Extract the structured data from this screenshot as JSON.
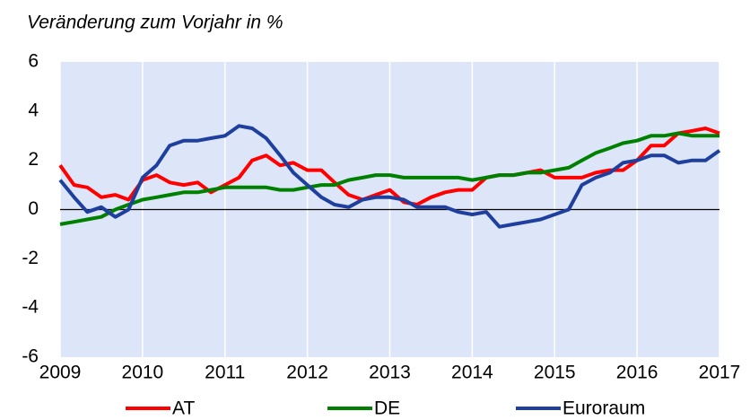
{
  "chart_data": {
    "type": "line",
    "title": "Veränderung zum Vorjahr in %",
    "x": [
      2009,
      2009.17,
      2009.33,
      2009.5,
      2009.67,
      2009.83,
      2010,
      2010.17,
      2010.33,
      2010.5,
      2010.67,
      2010.83,
      2011,
      2011.17,
      2011.33,
      2011.5,
      2011.67,
      2011.83,
      2012,
      2012.17,
      2012.33,
      2012.5,
      2012.67,
      2012.83,
      2013,
      2013.17,
      2013.33,
      2013.5,
      2013.67,
      2013.83,
      2014,
      2014.17,
      2014.33,
      2014.5,
      2014.67,
      2014.83,
      2015,
      2015.17,
      2015.33,
      2015.5,
      2015.67,
      2015.83,
      2016,
      2016.17,
      2016.33,
      2016.5,
      2016.67,
      2016.83,
      2017
    ],
    "series": [
      {
        "name": "AT",
        "color": "#ff0000",
        "values": [
          1.8,
          1.0,
          0.9,
          0.5,
          0.6,
          0.4,
          1.2,
          1.4,
          1.1,
          1.0,
          1.1,
          0.7,
          1.0,
          1.3,
          2.0,
          2.2,
          1.8,
          1.9,
          1.6,
          1.6,
          1.1,
          0.6,
          0.4,
          0.6,
          0.8,
          0.3,
          0.2,
          0.5,
          0.7,
          0.8,
          0.8,
          1.3,
          1.4,
          1.4,
          1.5,
          1.6,
          1.3,
          1.3,
          1.3,
          1.5,
          1.6,
          1.6,
          2.0,
          2.6,
          2.6,
          3.1,
          3.2,
          3.3,
          3.1
        ]
      },
      {
        "name": "DE",
        "color": "#008000",
        "values": [
          -0.6,
          -0.5,
          -0.4,
          -0.3,
          0.0,
          0.2,
          0.4,
          0.5,
          0.6,
          0.7,
          0.7,
          0.8,
          0.9,
          0.9,
          0.9,
          0.9,
          0.8,
          0.8,
          0.9,
          1.0,
          1.0,
          1.2,
          1.3,
          1.4,
          1.4,
          1.3,
          1.3,
          1.3,
          1.3,
          1.3,
          1.2,
          1.3,
          1.4,
          1.4,
          1.5,
          1.5,
          1.6,
          1.7,
          2.0,
          2.3,
          2.5,
          2.7,
          2.8,
          3.0,
          3.0,
          3.1,
          3.0,
          3.0,
          3.0
        ]
      },
      {
        "name": "Euroraum",
        "color": "#1f3f9f",
        "values": [
          1.2,
          0.5,
          -0.1,
          0.1,
          -0.3,
          0.0,
          1.3,
          1.8,
          2.6,
          2.8,
          2.8,
          2.9,
          3.0,
          3.4,
          3.3,
          2.9,
          2.2,
          1.5,
          1.0,
          0.5,
          0.2,
          0.1,
          0.4,
          0.5,
          0.5,
          0.4,
          0.1,
          0.1,
          0.1,
          -0.1,
          -0.2,
          -0.1,
          -0.7,
          -0.6,
          -0.5,
          -0.4,
          -0.2,
          0.0,
          1.0,
          1.3,
          1.5,
          1.9,
          2.0,
          2.2,
          2.2,
          1.9,
          2.0,
          2.0,
          2.4
        ]
      }
    ],
    "xlim": [
      2009,
      2017
    ],
    "xticks": [
      2009,
      2010,
      2011,
      2012,
      2013,
      2014,
      2015,
      2016,
      2017
    ],
    "ylim": [
      -6,
      6
    ],
    "yticks": [
      -6,
      -4,
      -2,
      0,
      2,
      4,
      6
    ],
    "grid": true,
    "legend": "bottom"
  }
}
